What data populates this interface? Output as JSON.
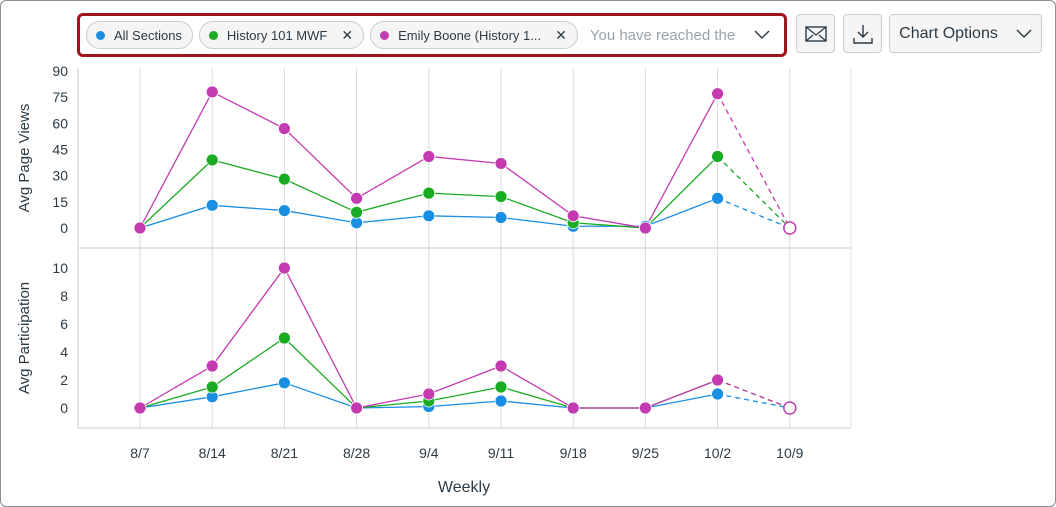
{
  "filters": {
    "chips": [
      {
        "label": "All Sections",
        "color": "#1a8ee3",
        "removable": false
      },
      {
        "label": "History 101 MWF",
        "color": "#1bab23",
        "removable": true
      },
      {
        "label": "Emily Boone (History 1...",
        "color": "#c33bb0",
        "removable": true
      }
    ],
    "placeholder": "You have reached the maximum"
  },
  "toolbar": {
    "email_icon": "envelope-icon",
    "download_icon": "download-icon",
    "chart_options_label": "Chart Options"
  },
  "chart_data": [
    {
      "type": "line",
      "ylabel": "Avg Page Views",
      "ylim": [
        0,
        90
      ],
      "yticks": [
        0,
        15,
        30,
        45,
        60,
        75,
        90
      ],
      "categories": [
        "8/7",
        "8/14",
        "8/21",
        "8/28",
        "9/4",
        "9/11",
        "9/18",
        "9/25",
        "10/2",
        "10/9"
      ],
      "series": [
        {
          "color": "#1a8ee3",
          "values": [
            0,
            13,
            10,
            3,
            7,
            6,
            1,
            1,
            17,
            0
          ]
        },
        {
          "color": "#1bab23",
          "values": [
            0,
            39,
            28,
            9,
            20,
            18,
            3,
            0,
            41,
            0
          ]
        },
        {
          "color": "#c33bb0",
          "values": [
            0,
            78,
            57,
            17,
            41,
            37,
            7,
            0,
            77,
            0
          ]
        }
      ]
    },
    {
      "type": "line",
      "ylabel": "Avg Participation",
      "ylim": [
        0,
        10
      ],
      "yticks": [
        0,
        2,
        4,
        6,
        8,
        10
      ],
      "categories": [
        "8/7",
        "8/14",
        "8/21",
        "8/28",
        "9/4",
        "9/11",
        "9/18",
        "9/25",
        "10/2",
        "10/9"
      ],
      "xlabel": "Weekly",
      "series": [
        {
          "color": "#1a8ee3",
          "values": [
            0,
            0.8,
            1.8,
            0,
            0.1,
            0.5,
            0,
            0,
            1,
            0
          ]
        },
        {
          "color": "#1bab23",
          "values": [
            0,
            1.5,
            5,
            0,
            0.5,
            1.5,
            0,
            0,
            2,
            0
          ]
        },
        {
          "color": "#c33bb0",
          "values": [
            0,
            3,
            10,
            0,
            1,
            3,
            0,
            0,
            2,
            0
          ]
        }
      ]
    }
  ]
}
